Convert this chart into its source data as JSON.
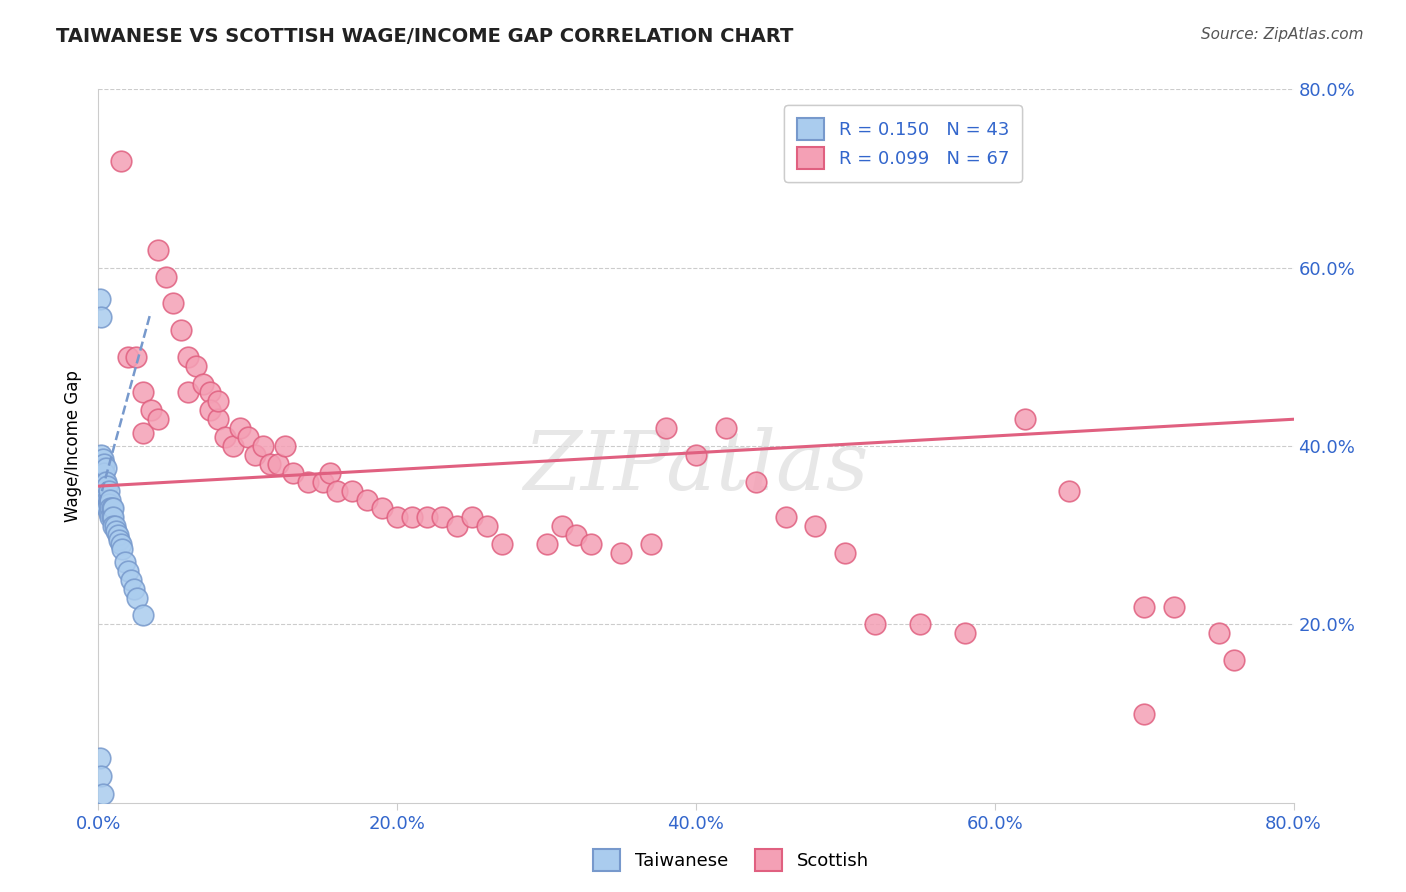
{
  "title": "TAIWANESE VS SCOTTISH WAGE/INCOME GAP CORRELATION CHART",
  "source": "Source: ZipAtlas.com",
  "ylabel": "Wage/Income Gap",
  "xlim": [
    0.0,
    0.8
  ],
  "ylim": [
    0.0,
    0.8
  ],
  "xticks": [
    0.0,
    0.2,
    0.4,
    0.6,
    0.8
  ],
  "ytick_vals": [
    0.2,
    0.4,
    0.6,
    0.8
  ],
  "ytick_labels": [
    "20.0%",
    "40.0%",
    "60.0%",
    "80.0%"
  ],
  "taiwanese_color": "#AACCEE",
  "taiwanese_edge": "#7799CC",
  "scottish_color": "#F4A0B5",
  "scottish_edge": "#E06080",
  "tw_line_color": "#7799CC",
  "sc_line_color": "#E06080",
  "legend_tw": "R = 0.150   N = 43",
  "legend_sc": "R = 0.099   N = 67",
  "legend_label_tw": "Taiwanese",
  "legend_label_sc": "Scottish",
  "watermark": "ZIPatlas",
  "tw_x": [
    0.001,
    0.002,
    0.002,
    0.003,
    0.003,
    0.003,
    0.004,
    0.004,
    0.004,
    0.004,
    0.005,
    0.005,
    0.005,
    0.005,
    0.006,
    0.006,
    0.006,
    0.007,
    0.007,
    0.007,
    0.008,
    0.008,
    0.008,
    0.009,
    0.009,
    0.01,
    0.01,
    0.01,
    0.011,
    0.012,
    0.013,
    0.014,
    0.015,
    0.016,
    0.018,
    0.02,
    0.022,
    0.024,
    0.026,
    0.03,
    0.001,
    0.002,
    0.003
  ],
  "tw_y": [
    0.565,
    0.545,
    0.39,
    0.385,
    0.375,
    0.365,
    0.38,
    0.37,
    0.36,
    0.35,
    0.375,
    0.36,
    0.345,
    0.335,
    0.355,
    0.34,
    0.33,
    0.35,
    0.335,
    0.325,
    0.34,
    0.33,
    0.32,
    0.33,
    0.32,
    0.33,
    0.32,
    0.31,
    0.31,
    0.305,
    0.3,
    0.295,
    0.29,
    0.285,
    0.27,
    0.26,
    0.25,
    0.24,
    0.23,
    0.21,
    0.05,
    0.03,
    0.01
  ],
  "sc_x": [
    0.015,
    0.02,
    0.025,
    0.03,
    0.03,
    0.035,
    0.04,
    0.04,
    0.045,
    0.05,
    0.055,
    0.06,
    0.06,
    0.065,
    0.07,
    0.075,
    0.075,
    0.08,
    0.08,
    0.085,
    0.09,
    0.095,
    0.1,
    0.105,
    0.11,
    0.115,
    0.12,
    0.125,
    0.13,
    0.14,
    0.15,
    0.155,
    0.16,
    0.17,
    0.18,
    0.19,
    0.2,
    0.21,
    0.22,
    0.23,
    0.24,
    0.25,
    0.26,
    0.27,
    0.3,
    0.31,
    0.32,
    0.33,
    0.35,
    0.37,
    0.38,
    0.4,
    0.42,
    0.44,
    0.46,
    0.48,
    0.5,
    0.52,
    0.55,
    0.58,
    0.62,
    0.65,
    0.7,
    0.75,
    0.72,
    0.76,
    0.7
  ],
  "sc_y": [
    0.72,
    0.5,
    0.5,
    0.46,
    0.415,
    0.44,
    0.43,
    0.62,
    0.59,
    0.56,
    0.53,
    0.5,
    0.46,
    0.49,
    0.47,
    0.46,
    0.44,
    0.43,
    0.45,
    0.41,
    0.4,
    0.42,
    0.41,
    0.39,
    0.4,
    0.38,
    0.38,
    0.4,
    0.37,
    0.36,
    0.36,
    0.37,
    0.35,
    0.35,
    0.34,
    0.33,
    0.32,
    0.32,
    0.32,
    0.32,
    0.31,
    0.32,
    0.31,
    0.29,
    0.29,
    0.31,
    0.3,
    0.29,
    0.28,
    0.29,
    0.42,
    0.39,
    0.42,
    0.36,
    0.32,
    0.31,
    0.28,
    0.2,
    0.2,
    0.19,
    0.43,
    0.35,
    0.22,
    0.19,
    0.22,
    0.16,
    0.1
  ],
  "tw_trend_x": [
    0.0,
    0.035
  ],
  "tw_trend_y": [
    0.335,
    0.55
  ],
  "sc_trend_x": [
    0.0,
    0.8
  ],
  "sc_trend_y": [
    0.355,
    0.43
  ]
}
